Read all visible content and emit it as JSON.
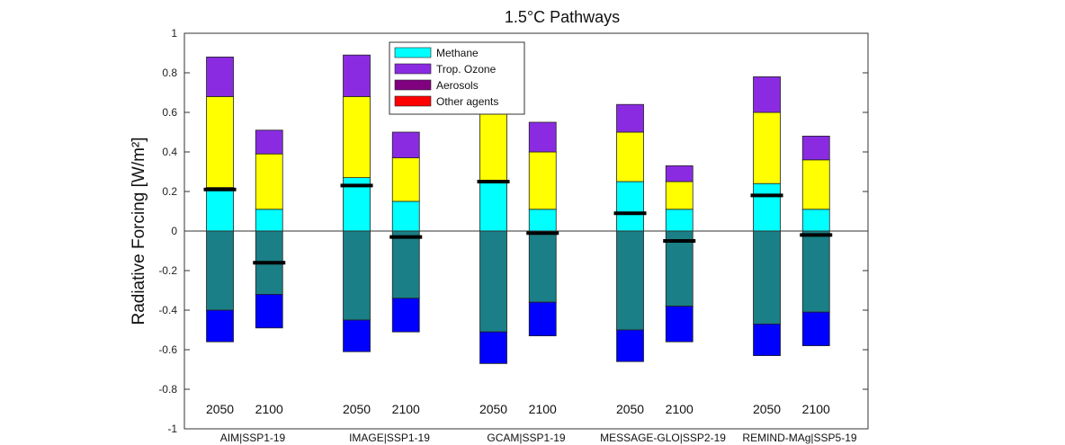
{
  "chart_data": {
    "type": "bar",
    "title": "1.5°C Pathways",
    "ylabel": "Radiative Forcing [W/m²]",
    "ylim": [
      -1,
      1
    ],
    "yticks": [
      -1,
      -0.8,
      -0.6,
      -0.4,
      -0.2,
      0,
      0.2,
      0.4,
      0.6,
      0.8,
      1
    ],
    "ytick_labels": [
      "-1",
      "-0.8",
      "-0.6",
      "-0.4",
      "-0.2",
      "0",
      "0.2",
      "0.4",
      "0.6",
      "0.8",
      "1"
    ],
    "stacked": true,
    "groups": [
      "AIM|SSP1-19",
      "IMAGE|SSP1-19",
      "GCAM|SSP1-19",
      "MESSAGE-GLO|SSP2-19",
      "REMIND-MAg|SSP5-19"
    ],
    "categories": [
      "2050",
      "2100",
      "2050",
      "2100",
      "2050",
      "2100",
      "2050",
      "2100",
      "2050",
      "2100"
    ],
    "legend": {
      "placement": "top-left",
      "entries": [
        {
          "label": "Methane",
          "color": "#00FFFF"
        },
        {
          "label": "Trop. Ozone",
          "color": "#8A2BE2"
        },
        {
          "label": "Aerosols",
          "color": "#800080"
        },
        {
          "label": "Other agents",
          "color": "#FF0000"
        }
      ]
    },
    "positive_series": [
      {
        "color": "#00FFFF",
        "values": [
          0.22,
          0.11,
          0.27,
          0.15,
          0.25,
          0.11,
          0.25,
          0.11,
          0.24,
          0.11
        ]
      },
      {
        "color": "#FFFF00",
        "values": [
          0.46,
          0.28,
          0.41,
          0.22,
          0.41,
          0.29,
          0.25,
          0.14,
          0.36,
          0.25
        ]
      },
      {
        "color": "#8A2BE2",
        "values": [
          0.2,
          0.12,
          0.21,
          0.13,
          0.2,
          0.15,
          0.14,
          0.08,
          0.18,
          0.12
        ]
      }
    ],
    "negative_series": [
      {
        "color": "#1A7F86",
        "values": [
          -0.4,
          -0.32,
          -0.45,
          -0.34,
          -0.51,
          -0.36,
          -0.5,
          -0.38,
          -0.47,
          -0.41
        ]
      },
      {
        "color": "#0000FF",
        "values": [
          -0.16,
          -0.17,
          -0.16,
          -0.17,
          -0.16,
          -0.17,
          -0.16,
          -0.18,
          -0.16,
          -0.17
        ]
      }
    ],
    "net_values": [
      0.21,
      -0.16,
      0.23,
      -0.03,
      0.25,
      -0.01,
      0.09,
      -0.05,
      0.18,
      -0.02
    ],
    "grid": false
  }
}
